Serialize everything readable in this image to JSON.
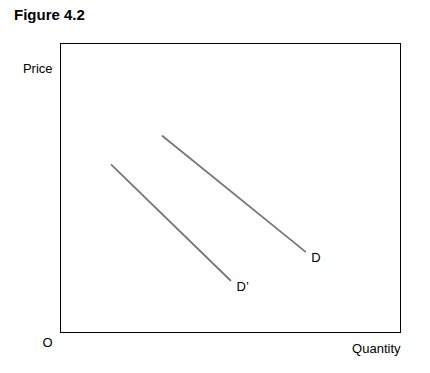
{
  "chart_data": {
    "type": "line",
    "title": "Figure 4.2",
    "xlabel": "Quantity",
    "ylabel": "Price",
    "annotations": [
      "O"
    ],
    "series": [
      {
        "name": "D",
        "color": "#777777",
        "x": [
          0.3,
          0.72
        ],
        "values": [
          0.68,
          0.28
        ]
      },
      {
        "name": "D’",
        "color": "#777777",
        "x": [
          0.15,
          0.5
        ],
        "values": [
          0.58,
          0.18
        ]
      }
    ],
    "xlim": [
      0,
      1
    ],
    "ylim": [
      0,
      1
    ],
    "xticks": [],
    "yticks": [],
    "tick_labels": false,
    "grid": false
  }
}
